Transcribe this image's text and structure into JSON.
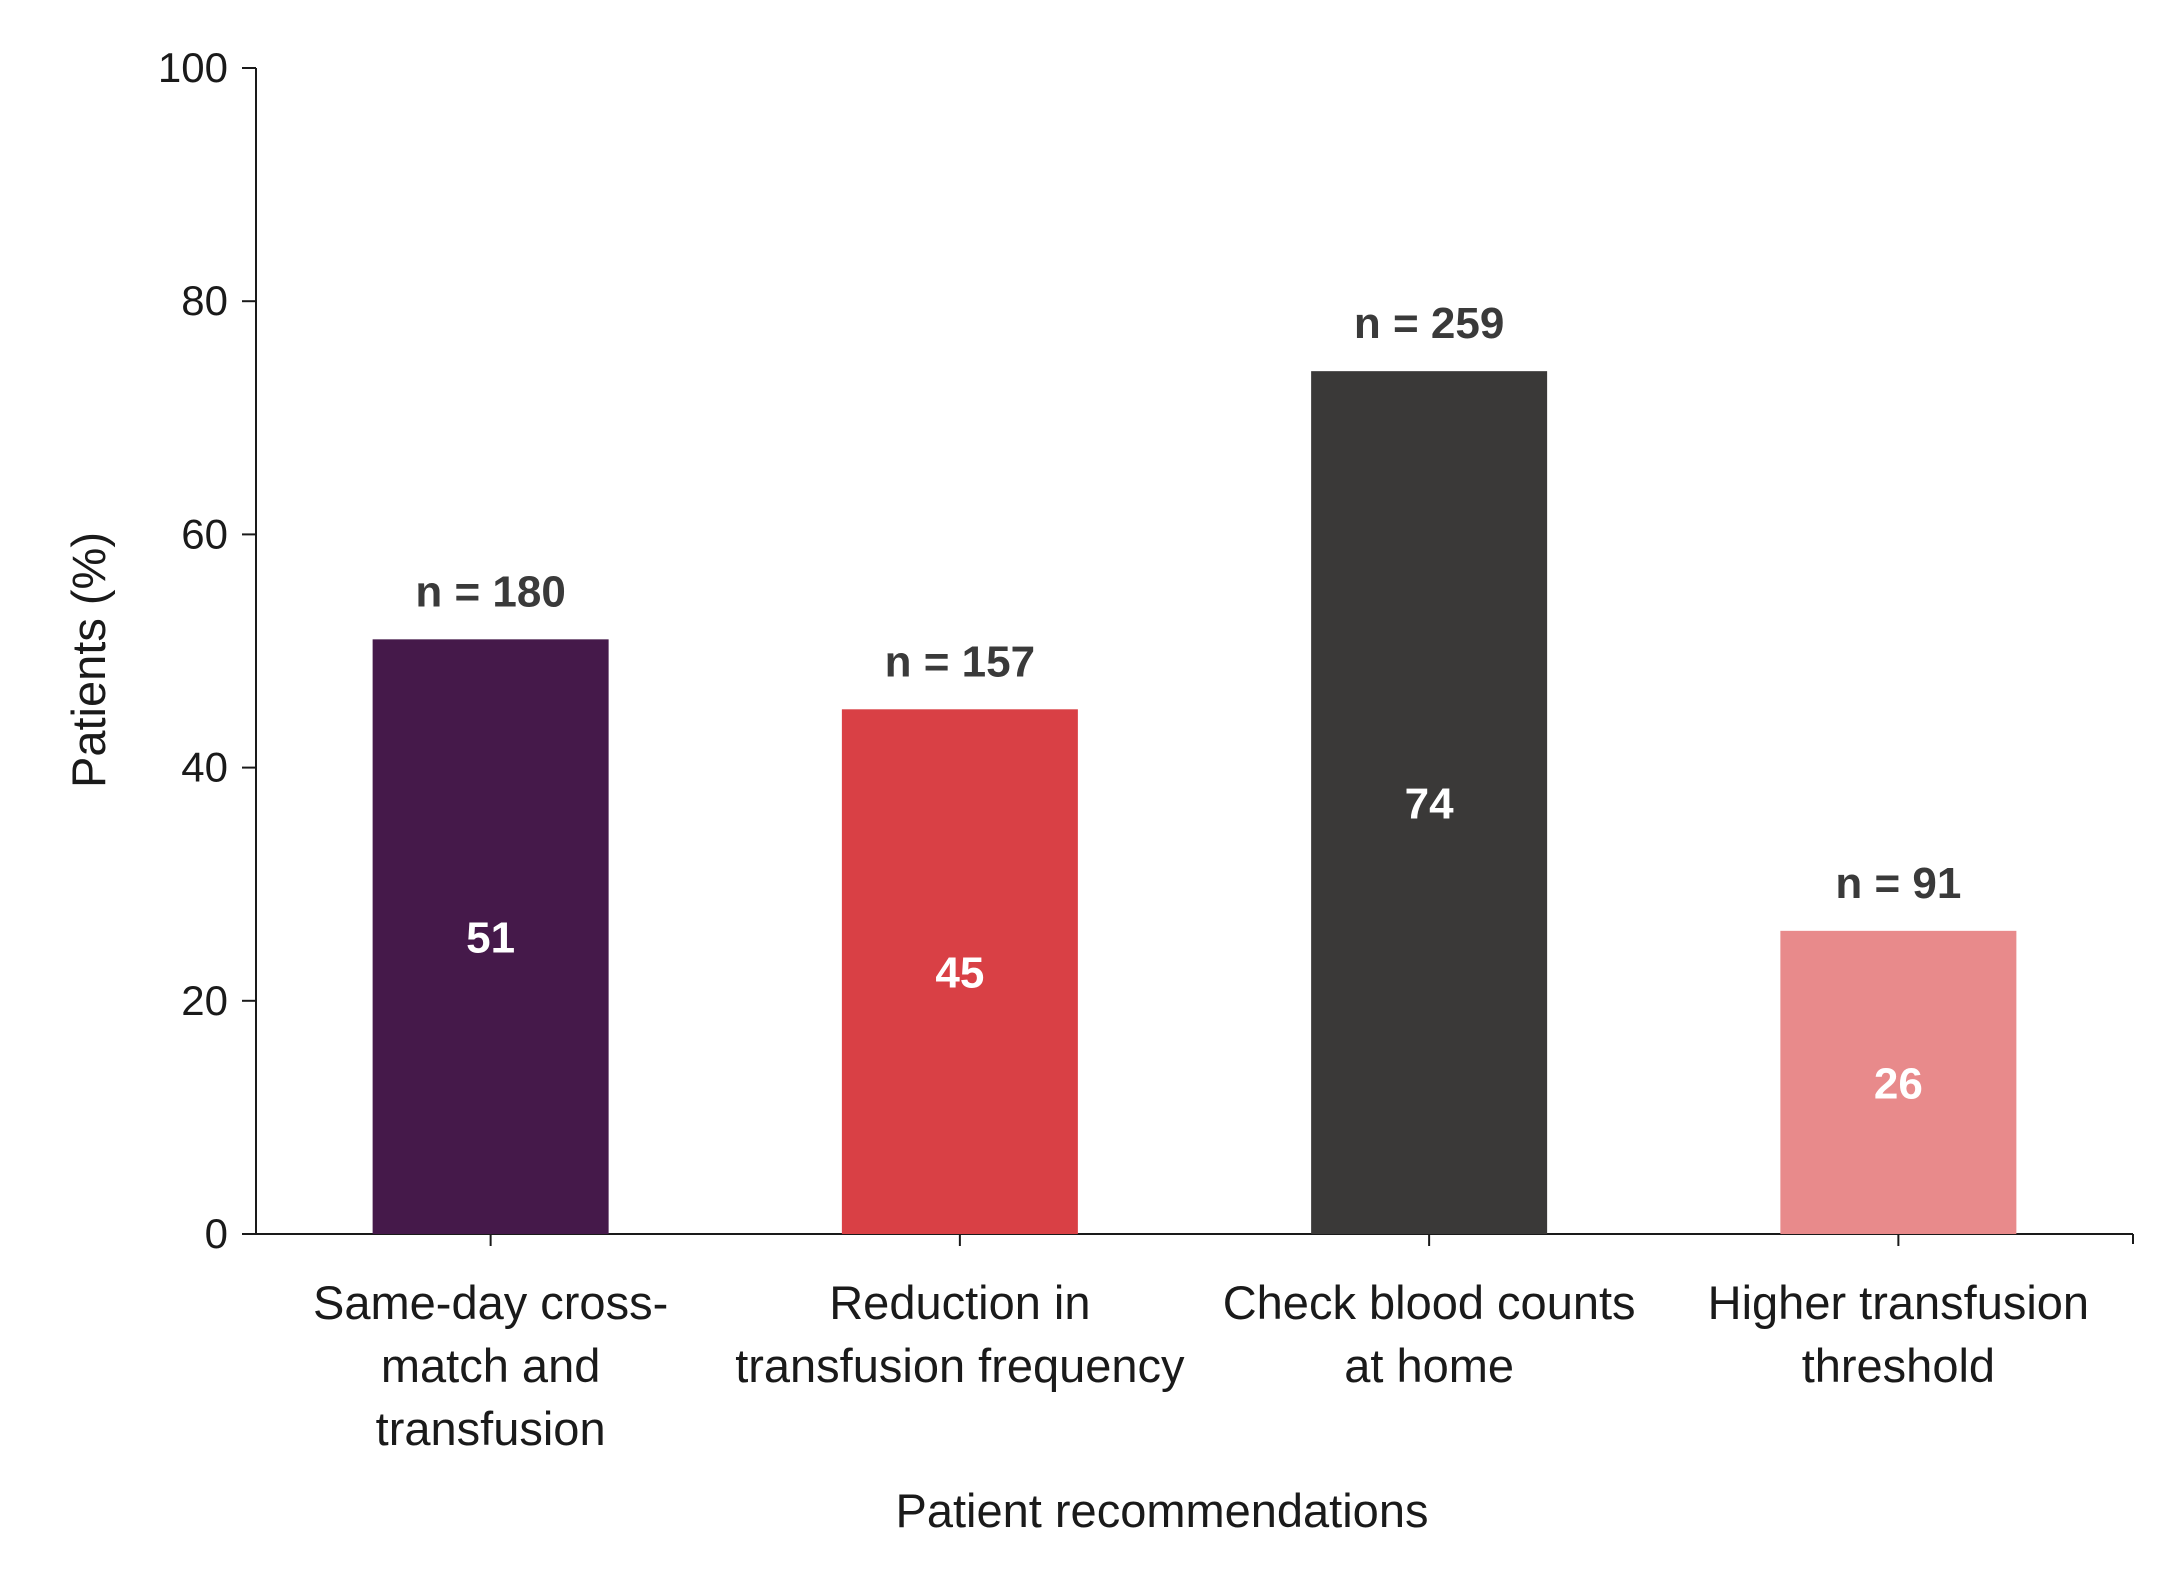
{
  "chart_data": {
    "type": "bar",
    "categories": [
      [
        "Same-day cross-",
        "match and",
        "transfusion"
      ],
      [
        "Reduction in",
        "transfusion frequency"
      ],
      [
        "Check blood counts",
        "at home"
      ],
      [
        "Higher transfusion",
        "threshold"
      ]
    ],
    "values": [
      51,
      45,
      74,
      26
    ],
    "value_labels": [
      "51",
      "45",
      "74",
      "26"
    ],
    "n_labels": [
      "n = 180",
      "n = 157",
      "n = 259",
      "n = 91"
    ],
    "colors": [
      "#45194a",
      "#d94045",
      "#3a3938",
      "#e88a8b"
    ],
    "xlabel": "Patient recommendations",
    "ylabel": "Patients (%)",
    "ylim": [
      0,
      100
    ],
    "yticks": [
      0,
      20,
      40,
      60,
      80,
      100
    ],
    "grid": false,
    "legend": false
  }
}
